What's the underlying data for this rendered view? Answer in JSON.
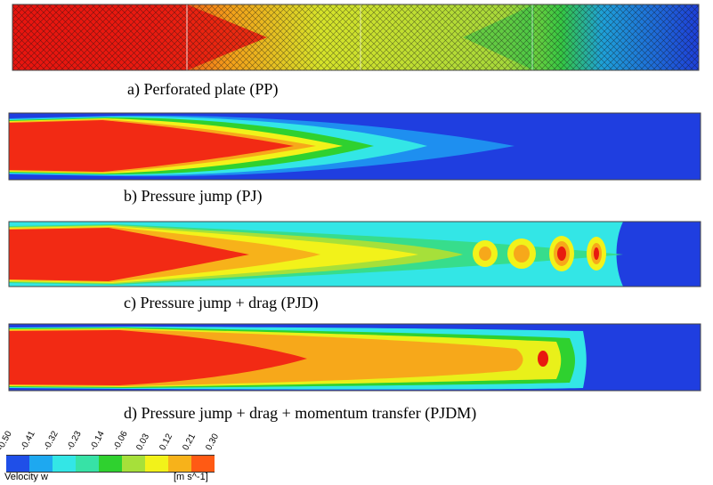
{
  "panels": [
    {
      "id": "a",
      "caption": "a) Perforated plate (PP)"
    },
    {
      "id": "b",
      "caption": "b) Pressure jump (PJ)"
    },
    {
      "id": "c",
      "caption": "c) Pressure jump + drag (PJD)"
    },
    {
      "id": "d",
      "caption": "d) Pressure jump + drag + momentum transfer (PJDM)"
    }
  ],
  "legend": {
    "title": "Velocity w",
    "unit": "[m s^-1]",
    "ticks": [
      "-0.50",
      "-0.41",
      "-0.32",
      "-0.23",
      "-0.14",
      "-0.06",
      "0.03",
      "0.12",
      "0.21",
      "0.30"
    ],
    "colors": [
      "#1f4fe8",
      "#1ea8f0",
      "#33e6e6",
      "#37e2a6",
      "#2fd12f",
      "#a6e03a",
      "#f2f21a",
      "#f7b21a",
      "#ff5a14"
    ]
  }
}
